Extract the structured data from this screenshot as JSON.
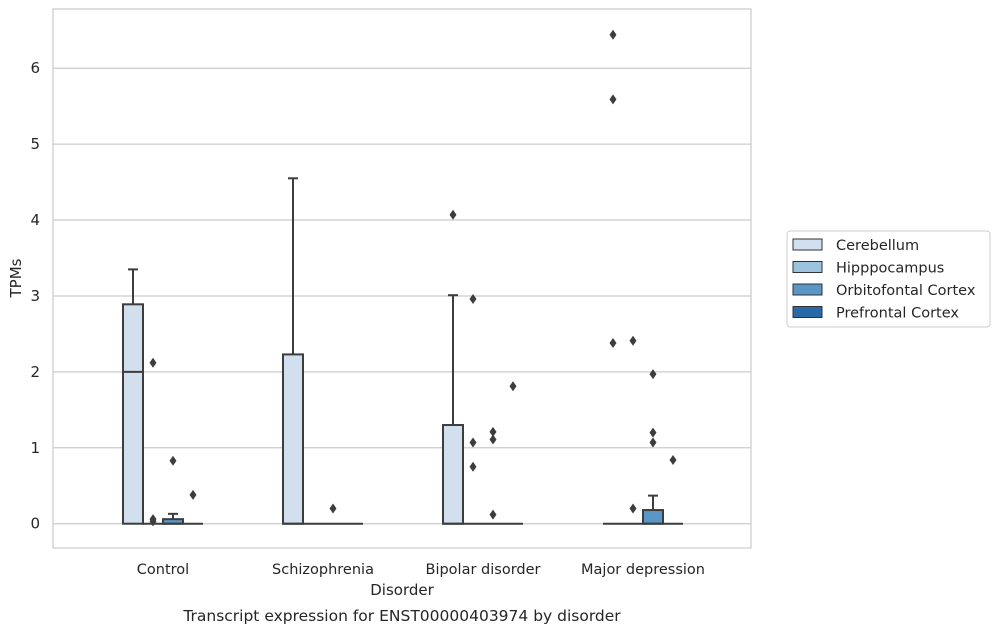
{
  "chart_data": {
    "type": "box",
    "title": "Transcript expression for ENST00000403974 by disorder",
    "xlabel": "Disorder",
    "ylabel": "TPMs",
    "ylim": [
      -0.32,
      6.78
    ],
    "yticks": [
      0,
      1,
      2,
      3,
      4,
      5,
      6
    ],
    "grid": "horizontal",
    "legend_position": "right",
    "categories": [
      "Control",
      "Schizophrenia",
      "Bipolar disorder",
      "Major depression"
    ],
    "series": [
      {
        "name": "Cerebellum",
        "color": "#d1dfee",
        "boxes": [
          {
            "q1": 0,
            "median": 2.0,
            "q3": 2.89,
            "whisker_low": 0,
            "whisker_high": 3.35,
            "outliers": []
          },
          {
            "q1": 0,
            "median": 0,
            "q3": 2.23,
            "whisker_low": 0,
            "whisker_high": 4.55,
            "outliers": []
          },
          {
            "q1": 0,
            "median": 0,
            "q3": 1.3,
            "whisker_low": 0,
            "whisker_high": 3.01,
            "outliers": [
              4.07
            ]
          },
          {
            "q1": 0,
            "median": 0,
            "q3": 0,
            "whisker_low": 0,
            "whisker_high": 0,
            "outliers": [
              6.44,
              5.59,
              2.38
            ]
          }
        ]
      },
      {
        "name": "Hipppocampus",
        "color": "#9bc3de",
        "boxes": [
          {
            "q1": 0,
            "median": 0,
            "q3": 0,
            "whisker_low": 0,
            "whisker_high": 0,
            "outliers": [
              2.12,
              0.06,
              0.03
            ]
          },
          {
            "q1": 0,
            "median": 0,
            "q3": 0,
            "whisker_low": 0,
            "whisker_high": 0,
            "outliers": []
          },
          {
            "q1": 0,
            "median": 0,
            "q3": 0,
            "whisker_low": 0,
            "whisker_high": 0,
            "outliers": [
              2.96,
              1.07,
              0.75
            ]
          },
          {
            "q1": 0,
            "median": 0,
            "q3": 0,
            "whisker_low": 0,
            "whisker_high": 0,
            "outliers": [
              2.41,
              0.2
            ]
          }
        ]
      },
      {
        "name": "Orbitofontal Cortex",
        "color": "#5a97c6",
        "boxes": [
          {
            "q1": 0,
            "median": 0,
            "q3": 0.06,
            "whisker_low": 0,
            "whisker_high": 0.13,
            "outliers": [
              0.83
            ]
          },
          {
            "q1": 0,
            "median": 0,
            "q3": 0,
            "whisker_low": 0,
            "whisker_high": 0,
            "outliers": [
              0.2
            ]
          },
          {
            "q1": 0,
            "median": 0,
            "q3": 0,
            "whisker_low": 0,
            "whisker_high": 0,
            "outliers": [
              1.21,
              1.11,
              0.12
            ]
          },
          {
            "q1": 0,
            "median": 0,
            "q3": 0.18,
            "whisker_low": 0,
            "whisker_high": 0.37,
            "outliers": [
              1.97,
              1.2,
              1.07
            ]
          }
        ]
      },
      {
        "name": "Prefrontal Cortex",
        "color": "#2a69a8",
        "boxes": [
          {
            "q1": 0,
            "median": 0,
            "q3": 0,
            "whisker_low": 0,
            "whisker_high": 0,
            "outliers": [
              0.38
            ]
          },
          {
            "q1": 0,
            "median": 0,
            "q3": 0,
            "whisker_low": 0,
            "whisker_high": 0,
            "outliers": []
          },
          {
            "q1": 0,
            "median": 0,
            "q3": 0,
            "whisker_low": 0,
            "whisker_high": 0,
            "outliers": [
              1.81
            ]
          },
          {
            "q1": 0,
            "median": 0,
            "q3": 0,
            "whisker_low": 0,
            "whisker_high": 0,
            "outliers": [
              0.84
            ]
          }
        ]
      }
    ]
  }
}
